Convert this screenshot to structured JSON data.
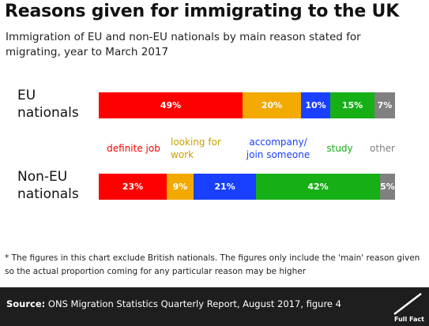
{
  "title": "Reasons given for immigrating to the UK",
  "subtitle": "Immigration of EU and non-EU nationals by main reason stated for migrating, year to March 2017",
  "chart_data": {
    "type": "bar",
    "orientation": "horizontal-stacked-100",
    "categories": [
      "EU nationals",
      "Non-EU nationals"
    ],
    "category_labels": [
      [
        "EU",
        "nationals"
      ],
      [
        "Non-EU",
        "nationals"
      ]
    ],
    "series": [
      {
        "name": "definite job",
        "color": "#ff0000",
        "values": [
          49,
          23
        ],
        "labels": [
          "49%",
          "23%"
        ]
      },
      {
        "name": "looking for work",
        "color": "#f2a900",
        "values": [
          20,
          9
        ],
        "labels": [
          "20%",
          "9%"
        ]
      },
      {
        "name": "accompany/ join someone",
        "color": "#1a40ff",
        "values": [
          10,
          21
        ],
        "labels": [
          "10%",
          "21%"
        ]
      },
      {
        "name": "study",
        "color": "#16b016",
        "values": [
          15,
          42
        ],
        "labels": [
          "15%",
          "42%"
        ]
      },
      {
        "name": "other",
        "color": "#808080",
        "values": [
          7,
          5
        ],
        "labels": [
          "7%",
          "5%"
        ]
      }
    ],
    "legend": [
      {
        "lines": [
          "definite job"
        ],
        "color": "#ff0000"
      },
      {
        "lines": [
          "looking for",
          "work"
        ],
        "color": "#c8a000"
      },
      {
        "lines": [
          "accompany/",
          "join someone"
        ],
        "color": "#1a40ff"
      },
      {
        "lines": [
          "study"
        ],
        "color": "#16b016"
      },
      {
        "lines": [
          "other"
        ],
        "color": "#808080"
      }
    ],
    "legend_placement": "between-bars",
    "grid": false
  },
  "footnote": "* The figures in this chart exclude British nationals. The figures only include the 'main' reason given so the actual proportion coming for any particular reason may be higher",
  "source": {
    "label": "Source:",
    "text": "ONS Migration Statistics Quarterly Report, August 2017, figure 4"
  },
  "logo": {
    "text": "Full Fact",
    "icon": "full-fact-logo"
  },
  "colors": {
    "footer_background": "#1e1e1e",
    "text": "#111111"
  }
}
